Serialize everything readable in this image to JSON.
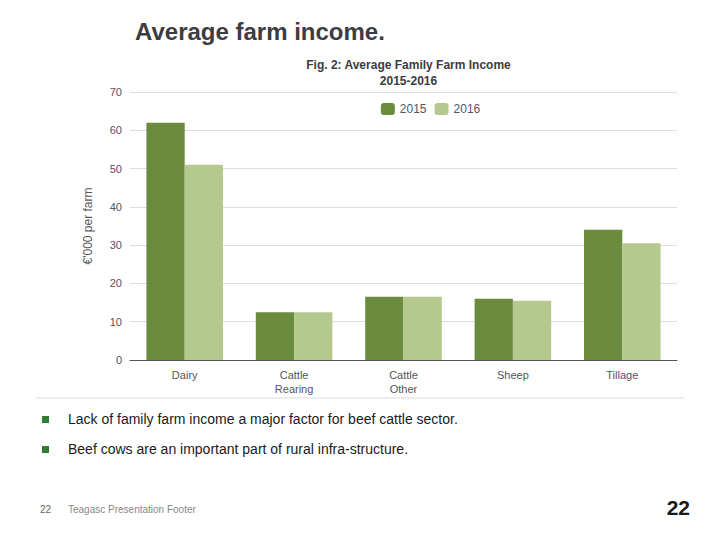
{
  "chart_data": {
    "type": "bar",
    "title": "Average farm income.",
    "subtitle": "Fig. 2: Average Family Farm Income\n2015-2016",
    "categories": [
      "Dairy",
      "Cattle\nRearing",
      "Cattle\nOther",
      "Sheep",
      "Tillage"
    ],
    "series": [
      {
        "name": "2015",
        "color": "#6b8c3e",
        "values": [
          62,
          12.5,
          16.5,
          16,
          34
        ]
      },
      {
        "name": "2016",
        "color": "#b5c98e",
        "values": [
          51,
          12.5,
          16.5,
          15.5,
          30.5
        ]
      }
    ],
    "ylabel": "€'000 per farm",
    "ylim": [
      0,
      70
    ],
    "yticks": [
      0,
      10,
      20,
      30,
      40,
      50,
      60,
      70
    ],
    "grid": true,
    "legend": "top",
    "annotations": [
      "Lack of family farm income a major factor for beef cattle sector.",
      "Beef cows are an important part of rural infra-structure.",
      "22",
      "Teagasc Presentation Footer",
      "22"
    ]
  }
}
